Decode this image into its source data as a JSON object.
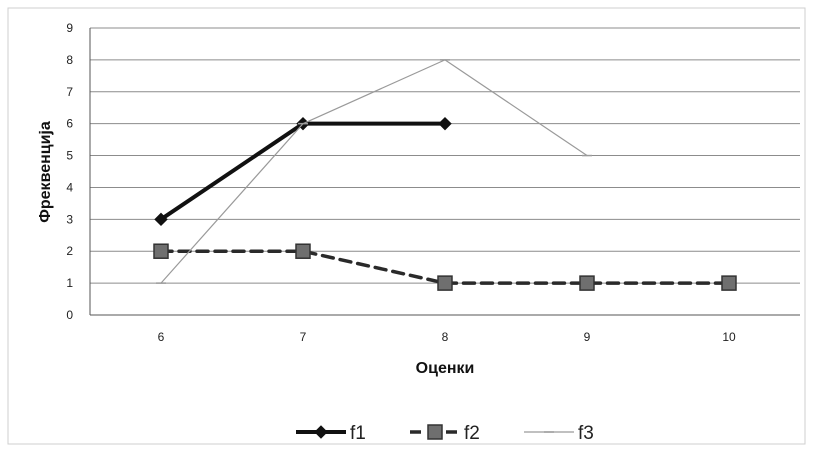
{
  "chart_data": {
    "type": "line",
    "title": "",
    "xlabel": "Оценки",
    "ylabel": "Фреквенција",
    "categories": [
      "6",
      "7",
      "8",
      "9",
      "10"
    ],
    "ylim": [
      0,
      9
    ],
    "yticks": [
      "0",
      "1",
      "2",
      "3",
      "4",
      "5",
      "6",
      "7",
      "8",
      "9"
    ],
    "grid": true,
    "legend_position": "bottom",
    "series": [
      {
        "name": "f1",
        "values": [
          3,
          6,
          6,
          null,
          null
        ],
        "color": "#111111",
        "dash": "solid",
        "marker": "diamond",
        "width": 4
      },
      {
        "name": "f2",
        "values": [
          2,
          2,
          1,
          1,
          1
        ],
        "color": "#2a2a2a",
        "dash": "dashed",
        "marker": "square",
        "width": 3.5
      },
      {
        "name": "f3",
        "values": [
          1,
          6,
          8,
          5,
          null
        ],
        "color": "#9a9a9a",
        "dash": "solid",
        "marker": "dash",
        "width": 1.2
      }
    ]
  }
}
